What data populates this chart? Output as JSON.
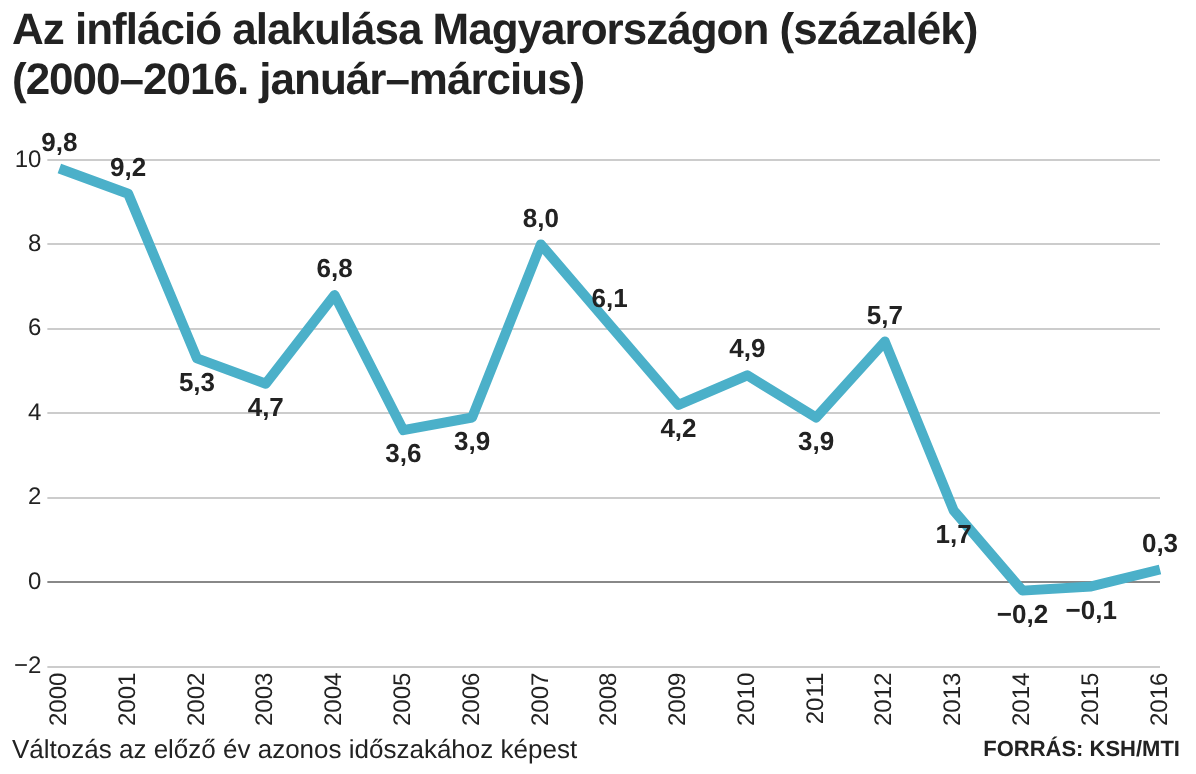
{
  "chart_data": {
    "type": "line",
    "title": "Az infláció alakulása Magyarországon (százalék)",
    "subtitle": "(2000–2016. január–március)",
    "categories": [
      "2000",
      "2001",
      "2002",
      "2003",
      "2004",
      "2005",
      "2006",
      "2007",
      "2008",
      "2009",
      "2010",
      "2011",
      "2012",
      "2013",
      "2014",
      "2015",
      "2016"
    ],
    "series": [
      {
        "color": "#4bb0c9",
        "values": [
          9.8,
          9.2,
          5.3,
          4.7,
          6.8,
          3.6,
          3.9,
          8.0,
          6.1,
          4.2,
          4.9,
          3.9,
          5.7,
          1.7,
          -0.2,
          -0.1,
          0.3
        ],
        "value_labels": [
          "9,8",
          "9,2",
          "5,3",
          "4,7",
          "6,8",
          "3,6",
          "3,9",
          "8,0",
          "6,1",
          "4,2",
          "4,9",
          "3,9",
          "5,7",
          "1,7",
          "−0,2",
          "−0,1",
          "0,3"
        ]
      }
    ],
    "ylim": [
      -2,
      10
    ],
    "yticks": [
      -2,
      0,
      2,
      4,
      6,
      8,
      10
    ],
    "grid": "y",
    "marker": "none",
    "legend": false,
    "annotations": [
      "Változás az előző év azonos időszakához képest",
      "FORRÁS: KSH/MTI"
    ]
  }
}
